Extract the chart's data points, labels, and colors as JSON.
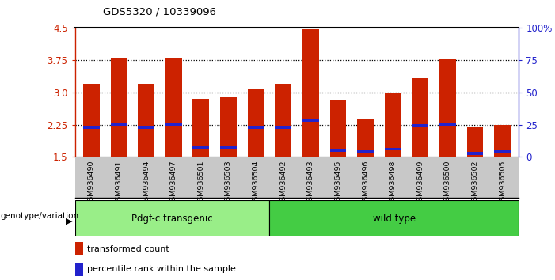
{
  "title": "GDS5320 / 10339096",
  "samples": [
    "GSM936490",
    "GSM936491",
    "GSM936494",
    "GSM936497",
    "GSM936501",
    "GSM936503",
    "GSM936504",
    "GSM936492",
    "GSM936493",
    "GSM936495",
    "GSM936496",
    "GSM936498",
    "GSM936499",
    "GSM936500",
    "GSM936502",
    "GSM936505"
  ],
  "bar_values": [
    3.2,
    3.8,
    3.2,
    3.8,
    2.85,
    2.88,
    3.08,
    3.2,
    4.47,
    2.82,
    2.38,
    2.98,
    3.32,
    3.77,
    2.18,
    2.24
  ],
  "blue_values": [
    2.18,
    2.25,
    2.18,
    2.25,
    1.72,
    1.72,
    2.18,
    2.18,
    2.35,
    1.65,
    1.62,
    1.68,
    2.22,
    2.25,
    1.58,
    1.62
  ],
  "bar_color": "#cc2200",
  "blue_color": "#2222cc",
  "ymin": 1.5,
  "ymax": 4.5,
  "yticks": [
    1.5,
    2.25,
    3.0,
    3.75,
    4.5
  ],
  "right_ytick_labels": [
    "0",
    "25",
    "50",
    "75",
    "100%"
  ],
  "group1_label": "Pdgf-c transgenic",
  "group2_label": "wild type",
  "group1_count": 7,
  "group2_count": 9,
  "genotype_label": "genotype/variation",
  "legend_items": [
    {
      "color": "#cc2200",
      "label": "transformed count"
    },
    {
      "color": "#2222cc",
      "label": "percentile rank within the sample"
    }
  ],
  "bar_width": 0.6,
  "bg_color": "#ffffff",
  "tick_area_color": "#c8c8c8",
  "group1_bg": "#99ee88",
  "group2_bg": "#44cc44"
}
